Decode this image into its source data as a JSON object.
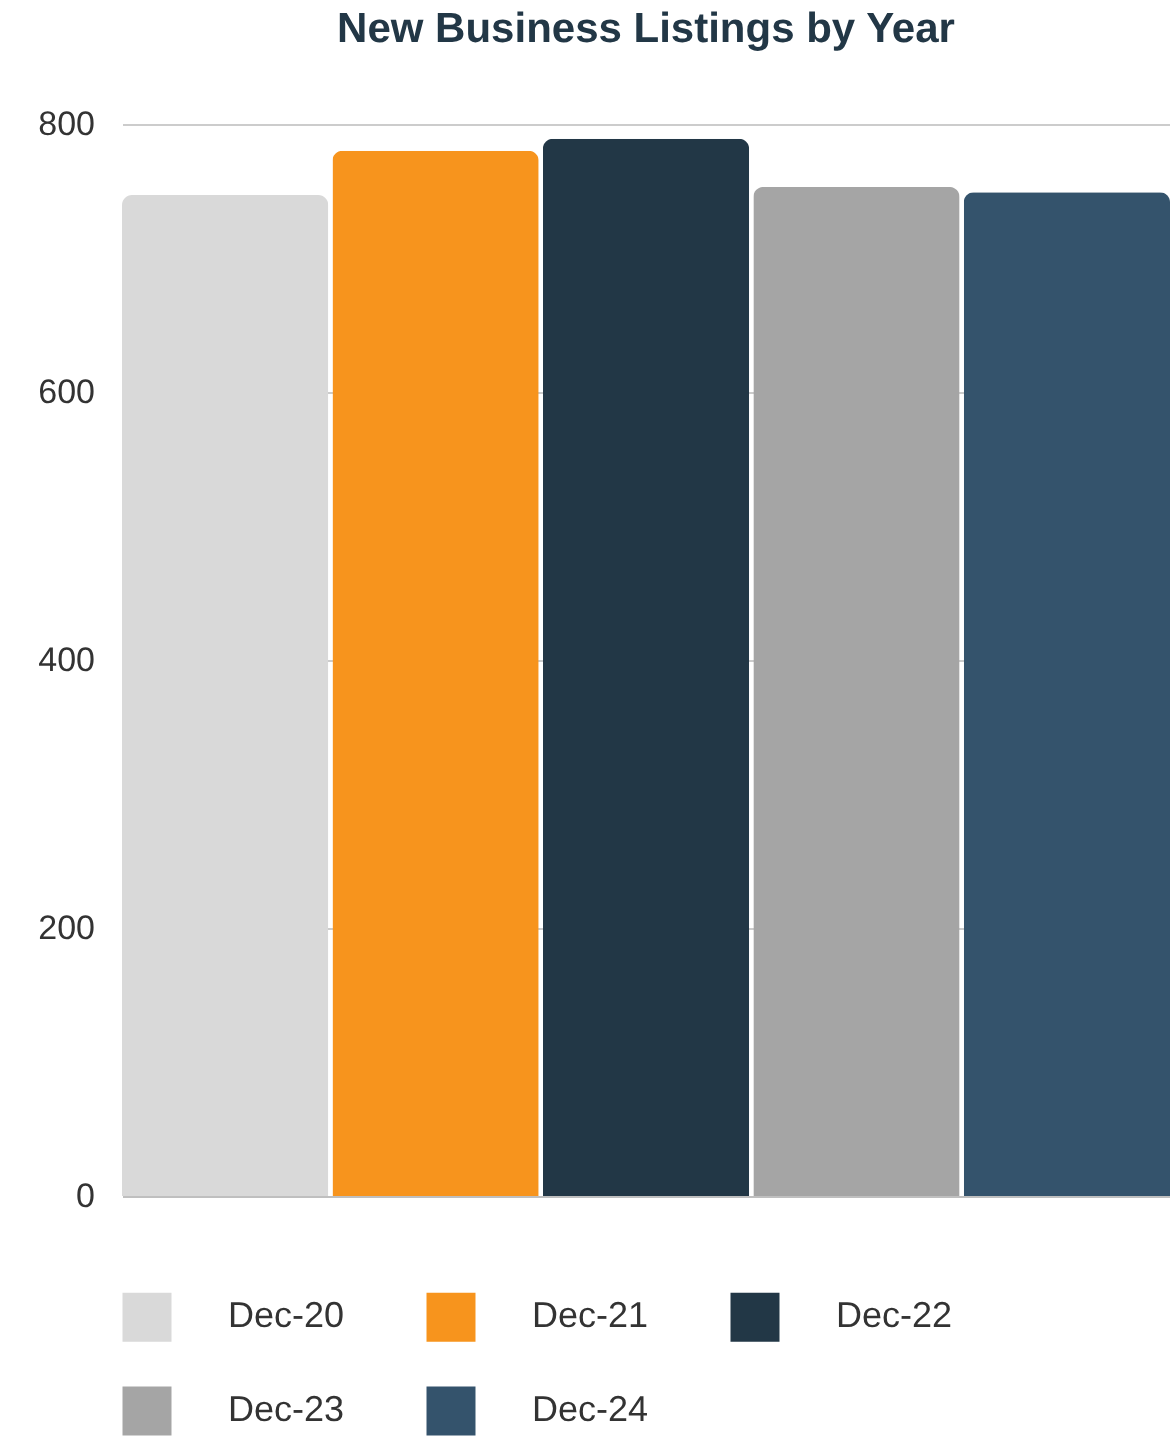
{
  "chart_data": {
    "type": "bar",
    "title": "New Business Listings by Year",
    "categories": [
      null
    ],
    "series": [
      {
        "name": "Dec-20",
        "color": "#d9d9d9",
        "values": [
          747
        ]
      },
      {
        "name": "Dec-21",
        "color": "#f7941d",
        "values": [
          780
        ]
      },
      {
        "name": "Dec-22",
        "color": "#223746",
        "values": [
          789
        ]
      },
      {
        "name": "Dec-23",
        "color": "#a5a5a5",
        "values": [
          753
        ]
      },
      {
        "name": "Dec-24",
        "color": "#34536c",
        "values": [
          749
        ]
      }
    ],
    "ylim": [
      0,
      800
    ],
    "yticks": [
      0,
      200,
      400,
      600,
      800
    ],
    "grid": "y",
    "legend": "bottom",
    "tick_labels": "y"
  }
}
